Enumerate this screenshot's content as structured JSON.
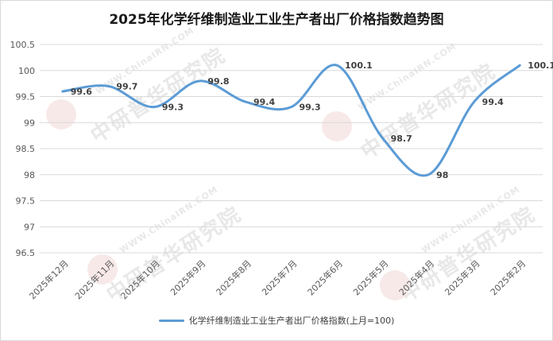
{
  "chart_data": {
    "type": "line",
    "title": "2025年化学纤维制造业工业生产者出厂价格指数趋势图",
    "categories": [
      "2025年12月",
      "2025年11月",
      "2025年10月",
      "2025年9月",
      "2025年8月",
      "2025年7月",
      "2025年6月",
      "2025年5月",
      "2025年4月",
      "2025年3月",
      "2025年2月"
    ],
    "series": [
      {
        "name": "化学纤维制造业工业生产者出厂价格指数(上月=100)",
        "values": [
          99.6,
          99.7,
          99.3,
          99.8,
          99.4,
          99.3,
          100.1,
          98.7,
          98.0,
          99.4,
          100.1
        ],
        "color": "#5b9bd5"
      }
    ],
    "data_labels": [
      "99.6",
      "99.7",
      "99.3",
      "99.8",
      "99.4",
      "99.3",
      "100.1",
      "98.7",
      "98",
      "99.4",
      "100.1"
    ],
    "yticks": [
      "96.5",
      "97",
      "97.5",
      "98",
      "98.5",
      "99",
      "99.5",
      "100",
      "100.5"
    ],
    "ylim": [
      96.5,
      100.5
    ],
    "xlabel": "",
    "ylabel": "",
    "grid": true,
    "legend_position": "bottom"
  },
  "watermark": {
    "url": "WWW.ChinaIRN.COM",
    "name": "中研普华研究院",
    "logo": "CIRN"
  }
}
